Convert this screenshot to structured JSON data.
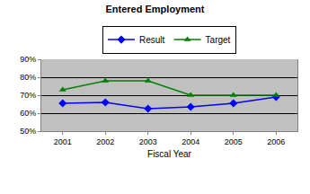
{
  "chart_data": {
    "type": "line",
    "title": "Entered Employment",
    "x_label": "Fiscal Year",
    "categories": [
      "2001",
      "2002",
      "2003",
      "2004",
      "2005",
      "2006"
    ],
    "series": [
      {
        "name": "Result",
        "color": "#0000ff",
        "marker": "diamond",
        "values": [
          65.5,
          66,
          62.5,
          63.5,
          65.5,
          69
        ]
      },
      {
        "name": "Target",
        "color": "#008000",
        "marker": "triangle-up",
        "values": [
          73,
          78,
          78,
          70,
          70,
          70
        ]
      }
    ],
    "ylim": [
      50,
      90
    ],
    "yticks": [
      {
        "value": 50,
        "label": "50%"
      },
      {
        "value": 60,
        "label": "60%"
      },
      {
        "value": 70,
        "label": "70%"
      },
      {
        "value": 80,
        "label": "80%"
      },
      {
        "value": 90,
        "label": "90%"
      }
    ],
    "grid": true,
    "legend": "top"
  }
}
